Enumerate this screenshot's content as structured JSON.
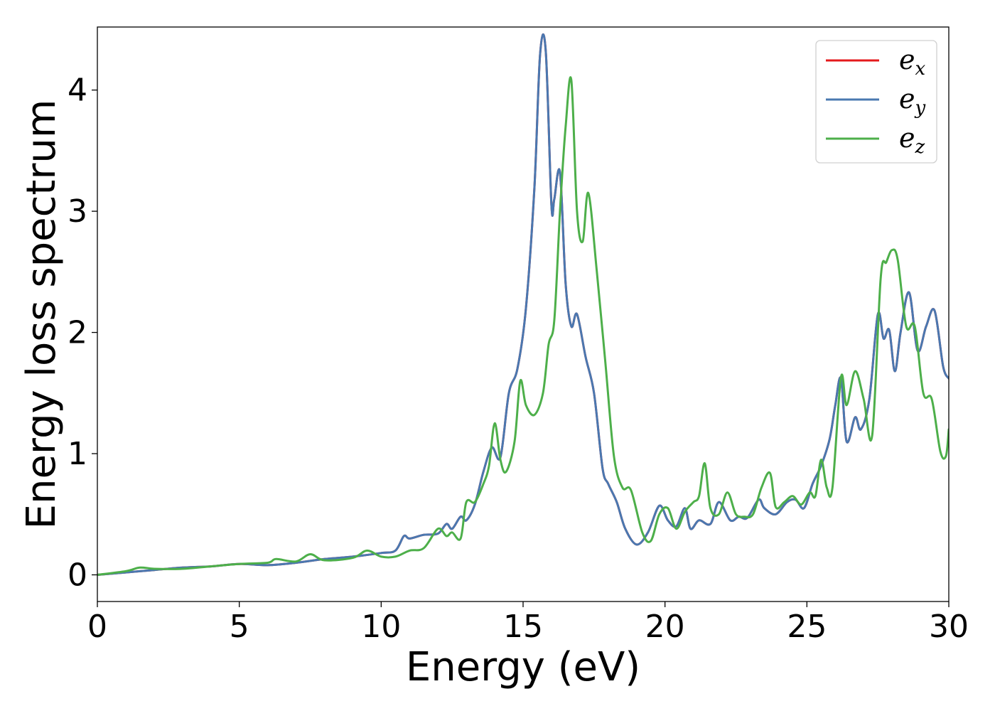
{
  "chart_data": {
    "type": "line",
    "title": "",
    "xlabel": "Energy (eV)",
    "ylabel": "Energy loss spectrum",
    "xlim": [
      0,
      30
    ],
    "ylim": [
      -0.22,
      4.52
    ],
    "xticks": [
      0,
      5,
      10,
      15,
      20,
      25,
      30
    ],
    "yticks": [
      0,
      1,
      2,
      3,
      4
    ],
    "grid": false,
    "legend": {
      "position": "top-right"
    },
    "series": [
      {
        "name": "e_x",
        "label_base": "e",
        "label_sub": "x",
        "color": "#e41a1c",
        "x": [
          0,
          1,
          2,
          3,
          4,
          5,
          6,
          7,
          8,
          9,
          10,
          10.5,
          10.8,
          11,
          11.5,
          12,
          12.3,
          12.5,
          12.8,
          13,
          13.3,
          13.6,
          13.9,
          14.2,
          14.5,
          14.8,
          15.1,
          15.4,
          15.6,
          15.8,
          16.0,
          16.1,
          16.3,
          16.5,
          16.7,
          16.9,
          17.2,
          17.5,
          17.8,
          18.0,
          18.3,
          18.6,
          19.0,
          19.4,
          19.8,
          20.1,
          20.4,
          20.7,
          20.9,
          21.2,
          21.6,
          21.9,
          22.3,
          22.6,
          22.9,
          23.3,
          23.5,
          23.9,
          24.3,
          24.6,
          24.9,
          25.2,
          25.5,
          25.8,
          26.0,
          26.2,
          26.4,
          26.7,
          26.9,
          27.2,
          27.5,
          27.7,
          27.9,
          28.1,
          28.3,
          28.6,
          28.9,
          29.2,
          29.5,
          29.8,
          30.0
        ],
        "y": [
          0.0,
          0.02,
          0.04,
          0.06,
          0.07,
          0.09,
          0.08,
          0.1,
          0.13,
          0.15,
          0.18,
          0.2,
          0.32,
          0.3,
          0.33,
          0.34,
          0.42,
          0.38,
          0.48,
          0.45,
          0.58,
          0.85,
          1.05,
          0.97,
          1.5,
          1.7,
          2.2,
          3.2,
          4.3,
          4.32,
          3.05,
          3.1,
          3.32,
          2.4,
          2.05,
          2.15,
          1.8,
          1.5,
          0.88,
          0.75,
          0.6,
          0.38,
          0.25,
          0.35,
          0.57,
          0.45,
          0.4,
          0.55,
          0.38,
          0.45,
          0.42,
          0.6,
          0.45,
          0.48,
          0.47,
          0.62,
          0.55,
          0.5,
          0.6,
          0.62,
          0.55,
          0.75,
          0.9,
          1.12,
          1.4,
          1.62,
          1.1,
          1.3,
          1.2,
          1.45,
          2.15,
          1.95,
          2.02,
          1.68,
          2.0,
          2.33,
          1.85,
          2.05,
          2.18,
          1.72,
          1.62
        ]
      },
      {
        "name": "e_y",
        "label_base": "e",
        "label_sub": "y",
        "color": "#4a78b0",
        "x": [
          0,
          1,
          2,
          3,
          4,
          5,
          6,
          7,
          8,
          9,
          10,
          10.5,
          10.8,
          11,
          11.5,
          12,
          12.3,
          12.5,
          12.8,
          13,
          13.3,
          13.6,
          13.9,
          14.2,
          14.5,
          14.8,
          15.1,
          15.4,
          15.6,
          15.8,
          16.0,
          16.1,
          16.3,
          16.5,
          16.7,
          16.9,
          17.2,
          17.5,
          17.8,
          18.0,
          18.3,
          18.6,
          19.0,
          19.4,
          19.8,
          20.1,
          20.4,
          20.7,
          20.9,
          21.2,
          21.6,
          21.9,
          22.3,
          22.6,
          22.9,
          23.3,
          23.5,
          23.9,
          24.3,
          24.6,
          24.9,
          25.2,
          25.5,
          25.8,
          26.0,
          26.2,
          26.4,
          26.7,
          26.9,
          27.2,
          27.5,
          27.7,
          27.9,
          28.1,
          28.3,
          28.6,
          28.9,
          29.2,
          29.5,
          29.8,
          30.0
        ],
        "y": [
          0.0,
          0.02,
          0.04,
          0.06,
          0.07,
          0.09,
          0.08,
          0.1,
          0.13,
          0.15,
          0.18,
          0.2,
          0.32,
          0.3,
          0.33,
          0.34,
          0.42,
          0.38,
          0.48,
          0.45,
          0.58,
          0.85,
          1.05,
          0.97,
          1.5,
          1.7,
          2.2,
          3.2,
          4.3,
          4.32,
          3.05,
          3.1,
          3.32,
          2.4,
          2.05,
          2.15,
          1.8,
          1.5,
          0.88,
          0.75,
          0.6,
          0.38,
          0.25,
          0.35,
          0.57,
          0.45,
          0.4,
          0.55,
          0.38,
          0.45,
          0.42,
          0.6,
          0.45,
          0.48,
          0.47,
          0.62,
          0.55,
          0.5,
          0.6,
          0.62,
          0.55,
          0.75,
          0.9,
          1.12,
          1.4,
          1.62,
          1.1,
          1.3,
          1.2,
          1.45,
          2.15,
          1.95,
          2.02,
          1.68,
          2.0,
          2.33,
          1.85,
          2.05,
          2.18,
          1.72,
          1.62
        ]
      },
      {
        "name": "e_z",
        "label_base": "e",
        "label_sub": "z",
        "color": "#4daf4a",
        "x": [
          0,
          1,
          1.5,
          2,
          3,
          4,
          5,
          6,
          6.3,
          7,
          7.5,
          8,
          9,
          9.5,
          10,
          10.5,
          11,
          11.5,
          12,
          12.3,
          12.5,
          12.8,
          13,
          13.3,
          13.6,
          13.8,
          14.0,
          14.2,
          14.4,
          14.7,
          14.9,
          15.1,
          15.4,
          15.7,
          15.9,
          16.1,
          16.3,
          16.5,
          16.7,
          16.9,
          17.1,
          17.3,
          17.6,
          17.9,
          18.2,
          18.5,
          18.8,
          19.2,
          19.5,
          19.8,
          20.1,
          20.4,
          20.7,
          21.0,
          21.2,
          21.4,
          21.6,
          21.9,
          22.2,
          22.5,
          22.8,
          23.1,
          23.4,
          23.7,
          23.9,
          24.2,
          24.5,
          24.8,
          25.1,
          25.3,
          25.5,
          25.7,
          25.9,
          26.2,
          26.4,
          26.7,
          27.0,
          27.3,
          27.6,
          27.8,
          28.0,
          28.2,
          28.5,
          28.8,
          29.1,
          29.4,
          29.7,
          29.9,
          30.0
        ],
        "y": [
          0.0,
          0.03,
          0.06,
          0.05,
          0.05,
          0.07,
          0.09,
          0.1,
          0.13,
          0.11,
          0.17,
          0.12,
          0.14,
          0.2,
          0.15,
          0.15,
          0.2,
          0.22,
          0.38,
          0.32,
          0.35,
          0.3,
          0.6,
          0.6,
          0.75,
          0.9,
          1.25,
          0.95,
          0.85,
          1.1,
          1.6,
          1.4,
          1.32,
          1.5,
          1.9,
          2.1,
          3.0,
          3.7,
          4.08,
          3.0,
          2.75,
          3.15,
          2.5,
          1.75,
          0.98,
          0.72,
          0.7,
          0.35,
          0.28,
          0.5,
          0.55,
          0.38,
          0.52,
          0.6,
          0.65,
          0.92,
          0.55,
          0.5,
          0.68,
          0.5,
          0.48,
          0.5,
          0.72,
          0.84,
          0.56,
          0.6,
          0.65,
          0.58,
          0.68,
          0.65,
          0.95,
          0.72,
          0.72,
          1.63,
          1.4,
          1.68,
          1.45,
          1.15,
          2.45,
          2.58,
          2.68,
          2.6,
          2.05,
          2.05,
          1.5,
          1.45,
          1.02,
          0.98,
          1.2
        ]
      }
    ]
  }
}
